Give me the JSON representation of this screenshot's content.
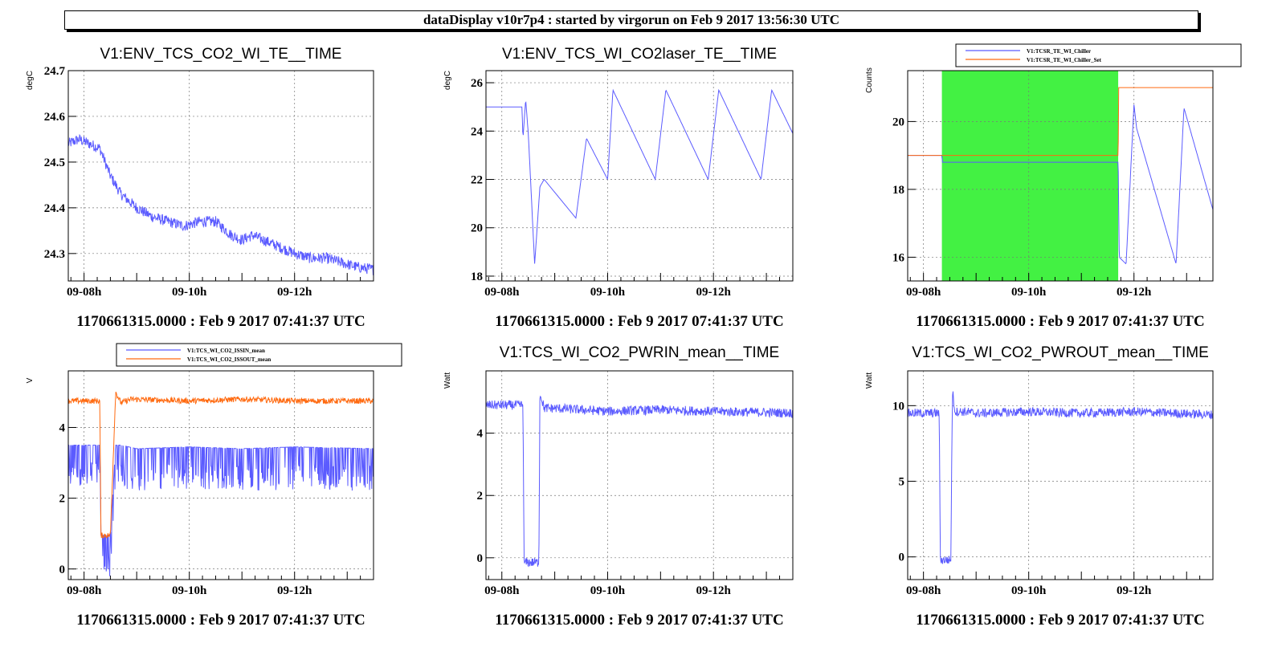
{
  "header": {
    "title": "dataDisplay v10r7p4 : started by virgorun on Feb  9 2017 13:56:30 UTC"
  },
  "colors": {
    "blue": "#5b5bff",
    "orange": "#ff6a10",
    "green": "#22ee22"
  },
  "chart_data": [
    {
      "type": "line",
      "title": "V1:ENV_TCS_CO2_WI_TE__TIME",
      "ylabel": "degC",
      "xlabel": "",
      "x_ticks": [
        "09-08h",
        "09-10h",
        "09-12h"
      ],
      "y_ticks": [
        "24.3",
        "24.4",
        "24.5",
        "24.6",
        "24.7"
      ],
      "ylim": [
        24.24,
        24.7
      ],
      "xlim_hours": [
        7.7,
        13.5
      ],
      "footer": "1170661315.0000 : Feb  9 2017 07:41:37 UTC",
      "grid": true,
      "series": [
        {
          "color": "#5b5bff",
          "noise": 0.012,
          "x": [
            7.7,
            7.9,
            8.1,
            8.3,
            8.5,
            8.7,
            9.0,
            9.3,
            9.6,
            9.9,
            10.2,
            10.5,
            10.8,
            11.0,
            11.2,
            11.4,
            11.6,
            11.8,
            12.0,
            12.3,
            12.6,
            12.9,
            13.2,
            13.5
          ],
          "y": [
            24.54,
            24.55,
            24.54,
            24.53,
            24.47,
            24.43,
            24.4,
            24.38,
            24.37,
            24.36,
            24.37,
            24.37,
            24.34,
            24.33,
            24.34,
            24.33,
            24.32,
            24.31,
            24.3,
            24.29,
            24.29,
            24.28,
            24.27,
            24.265
          ]
        }
      ]
    },
    {
      "type": "line",
      "title": "V1:ENV_TCS_WI_CO2laser_TE__TIME",
      "ylabel": "degC",
      "xlabel": "",
      "x_ticks": [
        "09-08h",
        "09-10h",
        "09-12h"
      ],
      "y_ticks": [
        "18",
        "20",
        "22",
        "24",
        "26"
      ],
      "ylim": [
        17.8,
        26.5
      ],
      "xlim_hours": [
        7.7,
        13.5
      ],
      "footer": "1170661315.0000 : Feb  9 2017 07:41:37 UTC",
      "grid": true,
      "series": [
        {
          "color": "#5b5bff",
          "noise": 0,
          "x": [
            7.7,
            8.38,
            8.4,
            8.45,
            8.5,
            8.62,
            8.72,
            8.8,
            9.4,
            9.6,
            10.0,
            10.1,
            10.9,
            11.1,
            11.9,
            12.1,
            12.9,
            13.1,
            13.5
          ],
          "y": [
            25.0,
            25.0,
            23.7,
            25.3,
            23.9,
            18.5,
            21.7,
            22.0,
            20.4,
            23.7,
            22.0,
            25.7,
            22.0,
            25.7,
            22.0,
            25.7,
            22.0,
            25.7,
            23.9
          ]
        }
      ]
    },
    {
      "type": "line",
      "title": "",
      "ylabel": "Counts",
      "xlabel": "",
      "x_ticks": [
        "09-08h",
        "09-10h",
        "09-12h"
      ],
      "y_ticks": [
        "16",
        "18",
        "20"
      ],
      "ylim": [
        15.3,
        21.5
      ],
      "xlim_hours": [
        7.7,
        13.5
      ],
      "footer": "1170661315.0000 : Feb  9 2017 07:41:37 UTC",
      "grid": true,
      "legend": {
        "position": "top",
        "entries": [
          "V1:TCSR_TE_WI_Chiller",
          "V1:TCSR_TE_WI_Chiller_Set"
        ]
      },
      "shaded_region_hours": [
        8.35,
        11.7
      ],
      "series": [
        {
          "name": "V1:TCSR_TE_WI_Chiller",
          "color": "#5b5bff",
          "noise": 0,
          "x": [
            7.7,
            8.35,
            8.36,
            11.7,
            11.72,
            11.85,
            12.0,
            12.05,
            12.8,
            12.95,
            13.5
          ],
          "y": [
            19.0,
            19.0,
            18.8,
            18.8,
            16.0,
            15.8,
            20.5,
            19.8,
            15.8,
            20.4,
            17.4
          ]
        },
        {
          "name": "V1:TCSR_TE_WI_Chiller_Set",
          "color": "#ff6a10",
          "noise": 0,
          "x": [
            7.7,
            11.7,
            11.71,
            13.5
          ],
          "y": [
            19.0,
            19.0,
            21.0,
            21.0
          ]
        }
      ]
    },
    {
      "type": "line",
      "title": "",
      "ylabel": "V",
      "xlabel": "",
      "x_ticks": [
        "09-08h",
        "09-10h",
        "09-12h"
      ],
      "y_ticks": [
        "0",
        "2",
        "4"
      ],
      "ylim": [
        -0.3,
        5.6
      ],
      "xlim_hours": [
        7.7,
        13.5
      ],
      "footer": "1170661315.0000 : Feb  9 2017 07:41:37 UTC",
      "grid": true,
      "legend": {
        "position": "top",
        "entries": [
          "V1:TCS_WI_CO2_ISSIN_mean",
          "V1:TCS_WI_CO2_ISSOUT_mean"
        ]
      },
      "series": [
        {
          "name": "V1:TCS_WI_CO2_ISSIN_mean",
          "color": "#5b5bff",
          "noise": 0.8,
          "x": [
            7.7,
            8.2,
            8.3,
            8.32,
            8.5,
            8.6,
            8.7,
            9.0,
            10.0,
            11.0,
            12.0,
            13.5
          ],
          "y": [
            3.5,
            3.5,
            3.5,
            0.95,
            0.95,
            3.5,
            3.5,
            3.4,
            3.45,
            3.4,
            3.45,
            3.4
          ]
        },
        {
          "name": "V1:TCS_WI_CO2_ISSOUT_mean",
          "color": "#ff6a10",
          "noise": 0.08,
          "x": [
            7.7,
            8.3,
            8.32,
            8.5,
            8.6,
            8.7,
            8.9,
            10.0,
            11.0,
            12.0,
            13.5
          ],
          "y": [
            4.75,
            4.75,
            0.95,
            0.95,
            5.0,
            4.7,
            4.8,
            4.75,
            4.8,
            4.75,
            4.75
          ]
        }
      ]
    },
    {
      "type": "line",
      "title": "V1:TCS_WI_CO2_PWRIN_mean__TIME",
      "ylabel": "Watt",
      "xlabel": "",
      "x_ticks": [
        "09-08h",
        "09-10h",
        "09-12h"
      ],
      "y_ticks": [
        "0",
        "2",
        "4"
      ],
      "ylim": [
        -0.7,
        6.0
      ],
      "xlim_hours": [
        7.7,
        13.5
      ],
      "footer": "1170661315.0000 : Feb  9 2017 07:41:37 UTC",
      "grid": true,
      "series": [
        {
          "name": "",
          "color": "#5b5bff",
          "noise": 0.15,
          "x": [
            7.7,
            8.4,
            8.42,
            8.7,
            8.72,
            8.8,
            9.0,
            10.0,
            11.0,
            12.0,
            13.5
          ],
          "y": [
            4.9,
            4.9,
            -0.15,
            -0.15,
            5.3,
            4.8,
            4.8,
            4.7,
            4.75,
            4.7,
            4.65
          ]
        }
      ]
    },
    {
      "type": "line",
      "title": "V1:TCS_WI_CO2_PWROUT_mean__TIME",
      "ylabel": "Watt",
      "xlabel": "",
      "x_ticks": [
        "09-08h",
        "09-10h",
        "09-12h"
      ],
      "y_ticks": [
        "0",
        "5",
        "10"
      ],
      "ylim": [
        -1.5,
        12.3
      ],
      "xlim_hours": [
        7.7,
        13.5
      ],
      "footer": "1170661315.0000 : Feb  9 2017 07:41:37 UTC",
      "grid": true,
      "series": [
        {
          "name": "",
          "color": "#5b5bff",
          "noise": 0.3,
          "x": [
            7.7,
            8.3,
            8.32,
            8.52,
            8.55,
            8.6,
            8.8,
            9.0,
            10.0,
            11.0,
            12.0,
            13.5
          ],
          "y": [
            9.5,
            9.5,
            -0.2,
            -0.2,
            11.0,
            9.6,
            9.6,
            9.5,
            9.6,
            9.5,
            9.6,
            9.4
          ]
        }
      ]
    }
  ]
}
